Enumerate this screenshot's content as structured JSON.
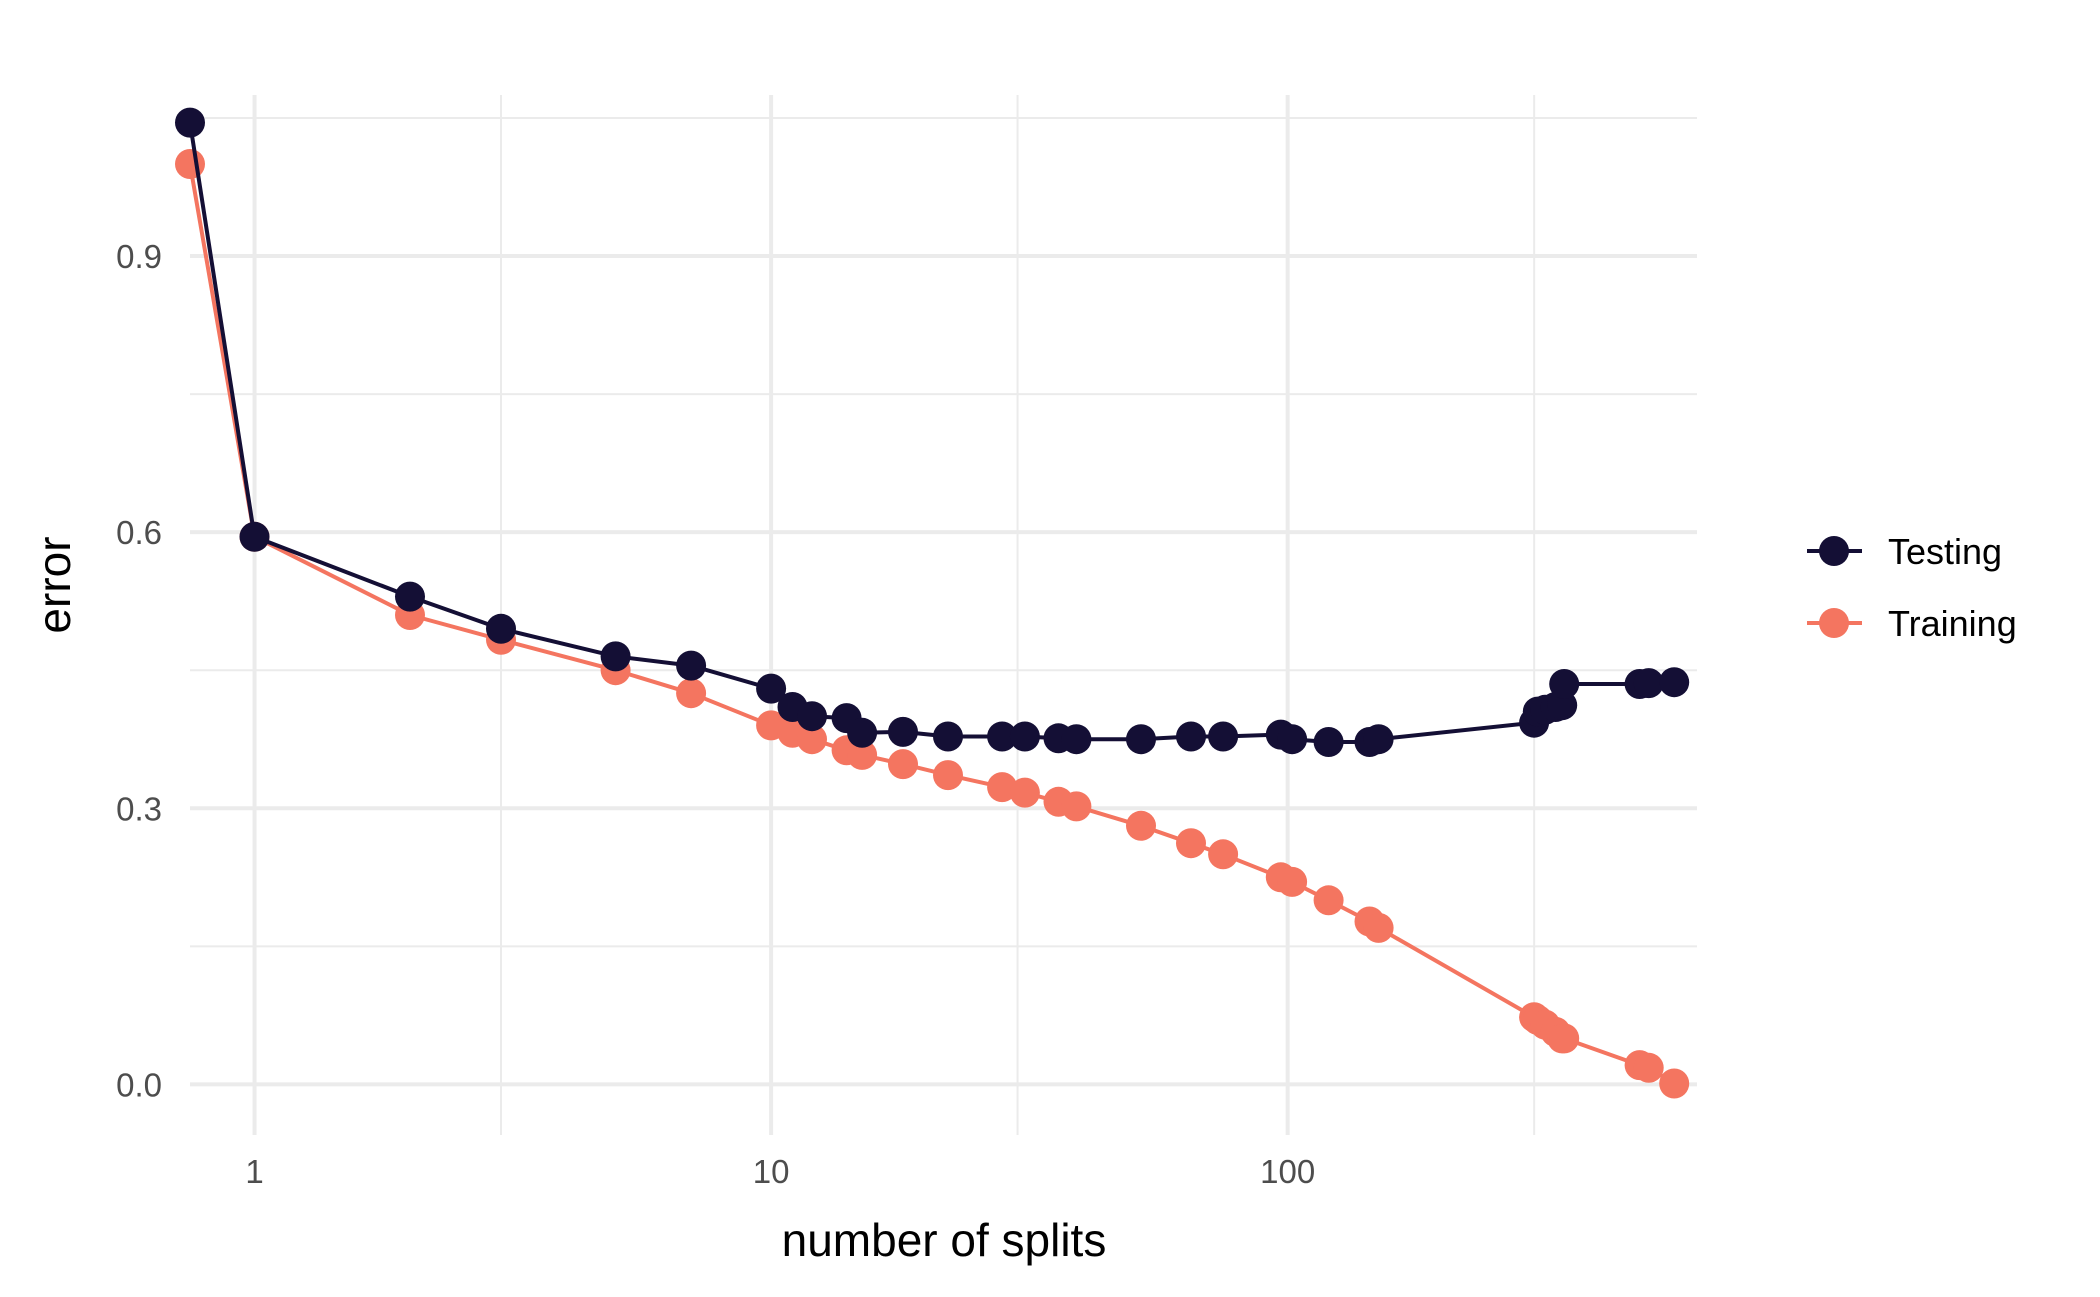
{
  "chart_data": {
    "type": "line",
    "xlabel": "number of splits",
    "ylabel": "error",
    "x_scale": "log10",
    "xlim": [
      0.75,
      620
    ],
    "ylim": [
      -0.055,
      1.075
    ],
    "x_ticks": [
      {
        "value": 1,
        "label": "1"
      },
      {
        "value": 10,
        "label": "10"
      },
      {
        "value": 100,
        "label": "100"
      }
    ],
    "y_ticks": [
      {
        "value": 0.0,
        "label": "0.0"
      },
      {
        "value": 0.3,
        "label": "0.3"
      },
      {
        "value": 0.6,
        "label": "0.6"
      },
      {
        "value": 0.9,
        "label": "0.9"
      }
    ],
    "x_minor_ticks": [
      3,
      30,
      300
    ],
    "y_minor_ticks": [
      0.15,
      0.45,
      0.75,
      1.05
    ],
    "grid": true,
    "legend_position": "right",
    "series": [
      {
        "name": "Testing",
        "color": "#140f35",
        "points": [
          [
            0.75,
            1.045
          ],
          [
            1,
            0.595
          ],
          [
            2,
            0.53
          ],
          [
            3,
            0.495
          ],
          [
            5,
            0.465
          ],
          [
            7,
            0.455
          ],
          [
            10,
            0.43
          ],
          [
            11,
            0.41
          ],
          [
            12,
            0.4
          ],
          [
            14,
            0.398
          ],
          [
            15,
            0.382
          ],
          [
            18,
            0.383
          ],
          [
            22,
            0.378
          ],
          [
            28,
            0.378
          ],
          [
            31,
            0.378
          ],
          [
            36,
            0.376
          ],
          [
            39,
            0.375
          ],
          [
            52,
            0.375
          ],
          [
            65,
            0.378
          ],
          [
            75,
            0.378
          ],
          [
            97,
            0.38
          ],
          [
            102,
            0.375
          ],
          [
            120,
            0.372
          ],
          [
            144,
            0.372
          ],
          [
            150,
            0.375
          ],
          [
            300,
            0.393
          ],
          [
            305,
            0.405
          ],
          [
            315,
            0.407
          ],
          [
            330,
            0.41
          ],
          [
            340,
            0.412
          ],
          [
            343,
            0.435
          ],
          [
            480,
            0.435
          ],
          [
            500,
            0.436
          ],
          [
            560,
            0.437
          ]
        ]
      },
      {
        "name": "Training",
        "color": "#f47560",
        "points": [
          [
            0.75,
            1.0
          ],
          [
            1,
            0.595
          ],
          [
            2,
            0.51
          ],
          [
            3,
            0.483
          ],
          [
            5,
            0.45
          ],
          [
            7,
            0.425
          ],
          [
            10,
            0.39
          ],
          [
            11,
            0.382
          ],
          [
            12,
            0.375
          ],
          [
            14,
            0.363
          ],
          [
            15,
            0.358
          ],
          [
            18,
            0.348
          ],
          [
            22,
            0.336
          ],
          [
            28,
            0.323
          ],
          [
            31,
            0.317
          ],
          [
            36,
            0.307
          ],
          [
            39,
            0.302
          ],
          [
            52,
            0.281
          ],
          [
            65,
            0.262
          ],
          [
            75,
            0.25
          ],
          [
            97,
            0.225
          ],
          [
            102,
            0.22
          ],
          [
            120,
            0.2
          ],
          [
            144,
            0.177
          ],
          [
            150,
            0.17
          ],
          [
            300,
            0.073
          ],
          [
            305,
            0.07
          ],
          [
            315,
            0.065
          ],
          [
            330,
            0.057
          ],
          [
            340,
            0.05
          ],
          [
            343,
            0.05
          ],
          [
            480,
            0.021
          ],
          [
            500,
            0.018
          ],
          [
            560,
            0.001
          ]
        ]
      }
    ]
  }
}
